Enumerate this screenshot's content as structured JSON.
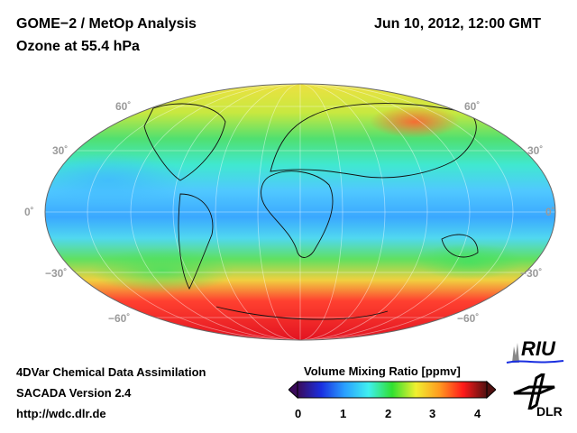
{
  "header": {
    "title_line1": "GOME−2 / MetOp Analysis",
    "title_line2": "Ozone at 55.4 hPa",
    "datetime": "Jun 10, 2012, 12:00 GMT"
  },
  "map": {
    "projection": "Hammer-Aitoff global",
    "lat_labels_left": [
      "60˚",
      "30˚",
      "0˚",
      "−30˚",
      "−60˚"
    ],
    "lat_labels_right": [
      "60˚",
      "30˚",
      "0˚",
      "−30˚",
      "−60˚"
    ]
  },
  "footer": {
    "line1": "4DVar Chemical Data Assimilation",
    "line2": "SACADA Version 2.4",
    "line3": "http://wdc.dlr.de"
  },
  "colorbar": {
    "title": "Volume Mixing Ratio [ppmv]",
    "ticks": [
      "0",
      "1",
      "2",
      "3",
      "4"
    ],
    "min": 0,
    "max": 4,
    "colors": [
      "#3a0a5a",
      "#1a2fe0",
      "#2aa0ff",
      "#3ff0f0",
      "#30e030",
      "#f0f030",
      "#ff9a20",
      "#ff1a1a",
      "#501010"
    ]
  },
  "logos": {
    "riu": "RIU",
    "dlr": "DLR"
  }
}
